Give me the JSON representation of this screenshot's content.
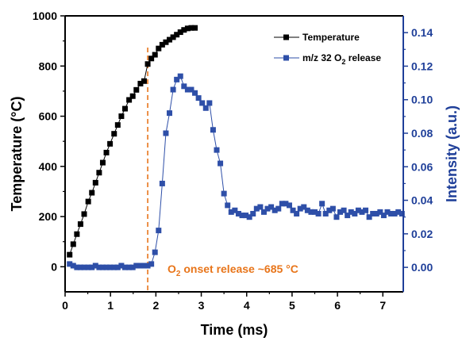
{
  "chart_data": {
    "type": "line",
    "xlabel": "Time (ms)",
    "ylabel_left": "Temperature (°C)",
    "ylabel_right": "Intensity (a.u.)",
    "xlim": [
      0,
      7.45
    ],
    "ylim_left": [
      -100,
      1000
    ],
    "ylim_right": [
      -0.0146,
      0.15
    ],
    "xticks": [
      "0",
      "1",
      "2",
      "3",
      "4",
      "5",
      "6",
      "7"
    ],
    "yticks_left": [
      "0",
      "200",
      "400",
      "600",
      "800",
      "1000"
    ],
    "yticks_right": [
      "0.00",
      "0.02",
      "0.04",
      "0.06",
      "0.08",
      "0.10",
      "0.12",
      "0.14"
    ],
    "legend_position": "top-right",
    "grid": false,
    "colors": {
      "temperature": "#000000",
      "o2": "#2e4fa8",
      "axis_right": "#1f3f99",
      "onset": "#e8751a"
    },
    "series": [
      {
        "name": "Temperature",
        "axis": "left",
        "marker": "square",
        "x": [
          0.1,
          0.18,
          0.26,
          0.34,
          0.42,
          0.51,
          0.59,
          0.67,
          0.75,
          0.83,
          0.91,
          0.99,
          1.08,
          1.16,
          1.24,
          1.32,
          1.41,
          1.49,
          1.57,
          1.66,
          1.74,
          1.82,
          1.9,
          1.98,
          2.06,
          2.14,
          2.22,
          2.3,
          2.38,
          2.46,
          2.54,
          2.62,
          2.7,
          2.78,
          2.86
        ],
        "values": [
          48,
          90,
          130,
          170,
          210,
          260,
          295,
          335,
          375,
          415,
          455,
          490,
          530,
          565,
          600,
          630,
          665,
          680,
          705,
          730,
          740,
          808,
          830,
          845,
          870,
          885,
          895,
          905,
          915,
          925,
          935,
          944,
          950,
          952,
          952
        ]
      },
      {
        "name": "m/z 32 O2 release",
        "axis": "right",
        "marker": "square",
        "x": [
          0.1,
          0.18,
          0.26,
          0.34,
          0.42,
          0.51,
          0.59,
          0.67,
          0.75,
          0.83,
          0.91,
          0.99,
          1.08,
          1.16,
          1.24,
          1.32,
          1.41,
          1.49,
          1.57,
          1.66,
          1.74,
          1.82,
          1.9,
          1.98,
          2.06,
          2.14,
          2.22,
          2.3,
          2.38,
          2.46,
          2.54,
          2.62,
          2.7,
          2.78,
          2.86,
          2.94,
          3.02,
          3.1,
          3.18,
          3.26,
          3.34,
          3.42,
          3.5,
          3.58,
          3.66,
          3.74,
          3.82,
          3.9,
          3.98,
          4.06,
          4.14,
          4.22,
          4.3,
          4.38,
          4.46,
          4.54,
          4.62,
          4.7,
          4.78,
          4.86,
          4.94,
          5.02,
          5.1,
          5.18,
          5.26,
          5.34,
          5.42,
          5.5,
          5.58,
          5.66,
          5.74,
          5.82,
          5.9,
          5.98,
          6.06,
          6.14,
          6.22,
          6.3,
          6.38,
          6.46,
          6.54,
          6.62,
          6.7,
          6.78,
          6.86,
          6.94,
          7.02,
          7.1,
          7.18,
          7.26,
          7.34,
          7.42
        ],
        "values": [
          0.002,
          0.001,
          0.0,
          0.0,
          0.0,
          0.0,
          0.0,
          0.001,
          0.0,
          0.0,
          0.0,
          0.0,
          0.0,
          0.0,
          0.001,
          0.0,
          0.0,
          0.0,
          0.001,
          0.001,
          0.001,
          0.001,
          0.002,
          0.009,
          0.022,
          0.05,
          0.08,
          0.092,
          0.106,
          0.112,
          0.114,
          0.108,
          0.106,
          0.106,
          0.104,
          0.101,
          0.098,
          0.095,
          0.098,
          0.082,
          0.07,
          0.062,
          0.044,
          0.037,
          0.033,
          0.034,
          0.032,
          0.031,
          0.031,
          0.03,
          0.032,
          0.035,
          0.036,
          0.033,
          0.035,
          0.036,
          0.034,
          0.035,
          0.038,
          0.038,
          0.037,
          0.034,
          0.032,
          0.035,
          0.036,
          0.034,
          0.033,
          0.033,
          0.032,
          0.038,
          0.032,
          0.034,
          0.035,
          0.03,
          0.033,
          0.034,
          0.031,
          0.033,
          0.032,
          0.034,
          0.033,
          0.034,
          0.03,
          0.032,
          0.032,
          0.033,
          0.031,
          0.033,
          0.032,
          0.032,
          0.033,
          0.032
        ]
      }
    ],
    "legend": [
      {
        "label": "Temperature",
        "color": "#000000"
      },
      {
        "label": "m/z 32 O",
        "sub": "2",
        "suffix": " release",
        "color": "#2e4fa8"
      }
    ],
    "onset_line": {
      "x": 1.82
    },
    "annotation": {
      "prefix": "O",
      "sub": "2",
      "suffix": " onset release ~685 °C"
    }
  }
}
